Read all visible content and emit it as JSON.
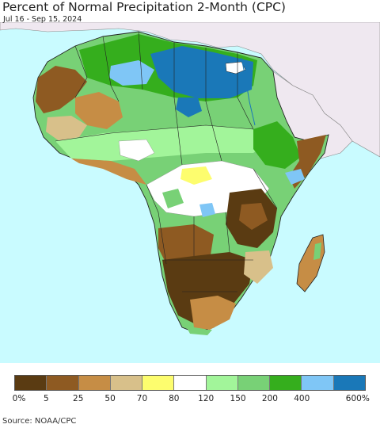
{
  "header": {
    "title": "Percent of Normal Precipitation 2-Month (CPC)",
    "date_range": "Jul 16 - Sep 15, 2024"
  },
  "colors": {
    "ocean": "#c9fbff",
    "outside_region": "#efe8f0",
    "border": "#222222",
    "inner_border": "#8a8a8a"
  },
  "legend": {
    "swatches": [
      {
        "color": "#5a3b12"
      },
      {
        "color": "#8e5a22"
      },
      {
        "color": "#c68d45"
      },
      {
        "color": "#d8c08a"
      },
      {
        "color": "#fdfd6e"
      },
      {
        "color": "#ffffff"
      },
      {
        "color": "#a2f59a"
      },
      {
        "color": "#78d176"
      },
      {
        "color": "#35ae1d"
      },
      {
        "color": "#7fc6f6"
      },
      {
        "color": "#1a78b8"
      }
    ],
    "labels": [
      "0%",
      "5",
      "25",
      "50",
      "70",
      "80",
      "120",
      "150",
      "200",
      "400",
      "600%"
    ]
  },
  "footer": {
    "source": "Source: NOAA/CPC"
  }
}
